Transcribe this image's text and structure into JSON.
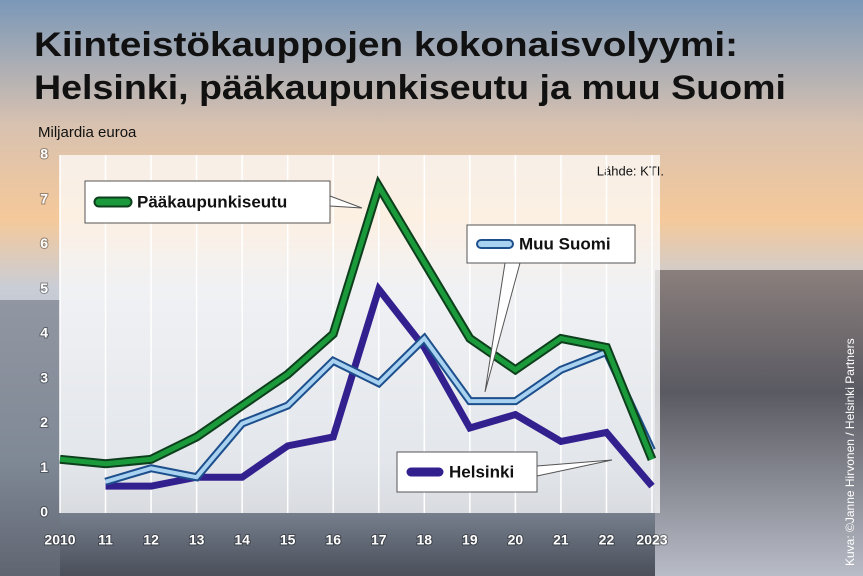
{
  "chart_data": {
    "type": "line",
    "title": [
      "Kiinteistökauppojen kokonaisvolyymi:",
      "Helsinki, pääkaupunkiseutu ja muu Suomi"
    ],
    "ylabel": "Miljardia euroa",
    "source": "Lähde: KTI.",
    "credit": "Kuva: ©Janne Hirvonen / Helsinki Partners",
    "categories": [
      "2010",
      "11",
      "12",
      "13",
      "14",
      "15",
      "16",
      "17",
      "18",
      "19",
      "20",
      "21",
      "22",
      "2023"
    ],
    "ylim": [
      0,
      8
    ],
    "yticks": [
      0,
      1,
      2,
      3,
      4,
      5,
      6,
      7,
      8
    ],
    "grid": "x",
    "series": [
      {
        "name": "Pääkaupunkiseutu",
        "color": "#1a9a3a",
        "values": [
          1.2,
          1.1,
          1.2,
          1.7,
          2.4,
          3.1,
          4.0,
          7.3,
          5.6,
          3.9,
          3.2,
          3.9,
          3.7,
          1.2
        ]
      },
      {
        "name": "Muu Suomi",
        "color": "#a9d1f0",
        "values": [
          null,
          0.7,
          1.0,
          0.8,
          2.0,
          2.4,
          3.4,
          2.9,
          3.9,
          2.5,
          2.5,
          3.2,
          3.6,
          1.4
        ]
      },
      {
        "name": "Helsinki",
        "color": "#33208f",
        "values": [
          null,
          0.6,
          0.6,
          0.8,
          0.8,
          1.5,
          1.7,
          5.0,
          3.7,
          1.9,
          2.2,
          1.6,
          1.8,
          0.6
        ]
      }
    ]
  }
}
